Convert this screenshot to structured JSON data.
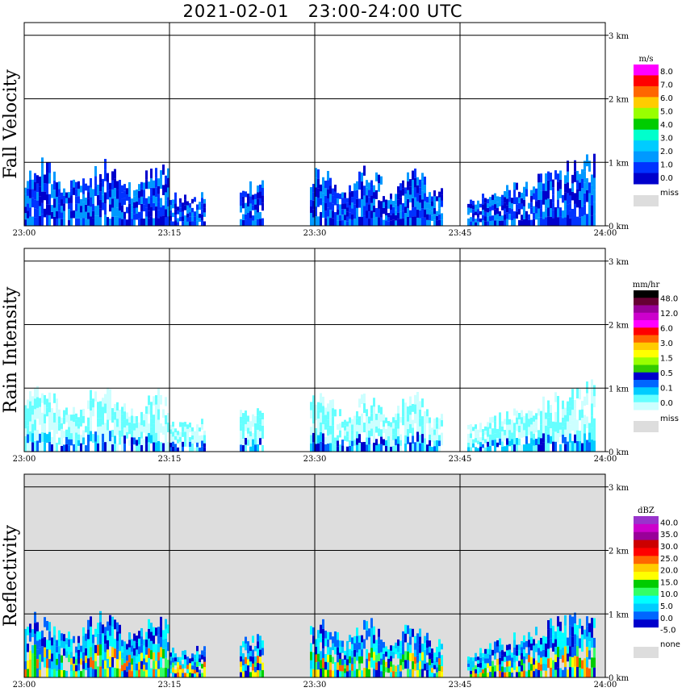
{
  "title": "2021-02-01   23:00-24:00 UTC",
  "chart_data": [
    {
      "type": "heatmap",
      "title": "Fall Velocity",
      "x_ticks": [
        "23:00",
        "23:15",
        "23:30",
        "23:45",
        "24:00"
      ],
      "y_ticks": [
        "0 km",
        "1 km",
        "2 km",
        "3 km"
      ],
      "ylim": [
        0,
        3
      ],
      "grid": true,
      "background": "#ffffff",
      "colorbar": {
        "unit": "m/s",
        "labels": [
          "8.0",
          "7.0",
          "6.0",
          "5.0",
          "4.0",
          "3.0",
          "2.0",
          "1.0",
          "0.0"
        ],
        "colors": [
          "#ff00ff",
          "#ff0000",
          "#ff6600",
          "#ffcc00",
          "#99ff00",
          "#00cc00",
          "#00ffcc",
          "#00ccff",
          "#0099ff",
          "#0033ff",
          "#0000cc"
        ],
        "miss_label": "miss",
        "miss_color": "#dddddd"
      }
    },
    {
      "type": "heatmap",
      "title": "Rain Intensity",
      "x_ticks": [
        "23:00",
        "23:15",
        "23:30",
        "23:45",
        "24:00"
      ],
      "y_ticks": [
        "0 km",
        "1 km",
        "2 km",
        "3 km"
      ],
      "ylim": [
        0,
        3
      ],
      "grid": true,
      "background": "#ffffff",
      "colorbar": {
        "unit": "mm/hr",
        "labels": [
          "48.0",
          "12.0",
          "6.0",
          "3.0",
          "1.5",
          "0.5",
          "0.1",
          "0.0"
        ],
        "colors": [
          "#000000",
          "#660033",
          "#990099",
          "#cc00cc",
          "#ff00ff",
          "#ff0000",
          "#ff6600",
          "#ffcc00",
          "#ffff00",
          "#99ff00",
          "#33cc00",
          "#0000cc",
          "#0066ff",
          "#00ccff",
          "#66ffff",
          "#ccffff"
        ],
        "miss_label": "miss",
        "miss_color": "#dddddd"
      }
    },
    {
      "type": "heatmap",
      "title": "Reflectivity",
      "x_ticks": [
        "23:00",
        "23:15",
        "23:30",
        "23:45",
        "24:00"
      ],
      "y_ticks": [
        "0 km",
        "1 km",
        "2 km",
        "3 km"
      ],
      "ylim": [
        0,
        3
      ],
      "grid": true,
      "background": "#dddddd",
      "colorbar": {
        "unit": "dBZ",
        "labels": [
          "40.0",
          "35.0",
          "30.0",
          "25.0",
          "20.0",
          "15.0",
          "10.0",
          "5.0",
          "0.0",
          "-5.0"
        ],
        "colors": [
          "#9933cc",
          "#cc00cc",
          "#990099",
          "#cc0000",
          "#ff0000",
          "#ff6600",
          "#ffcc00",
          "#ffff00",
          "#00cc00",
          "#33ff66",
          "#00ffff",
          "#00ccff",
          "#0066ff",
          "#0000cc",
          "#ffffff"
        ],
        "miss_label": "none",
        "miss_color": "#dddddd"
      }
    }
  ]
}
